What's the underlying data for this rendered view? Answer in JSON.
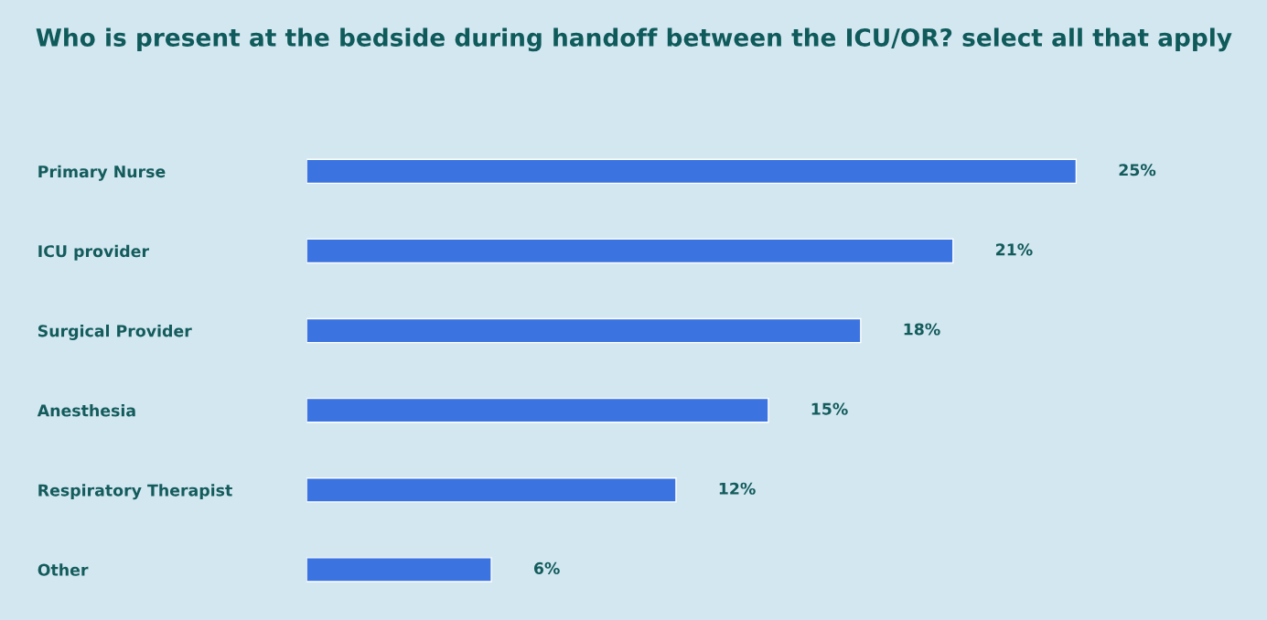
{
  "chart_data": {
    "type": "bar",
    "orientation": "horizontal",
    "title": "Who is present at the bedside during handoff between the ICU/OR? select all that apply",
    "categories": [
      "Primary Nurse",
      "ICU provider",
      "Surgical Provider",
      "Anesthesia",
      "Respiratory Therapist",
      "Other"
    ],
    "values": [
      25,
      21,
      18,
      15,
      12,
      6
    ],
    "value_labels": [
      "25%",
      "21%",
      "18%",
      "15%",
      "12%",
      "6%"
    ],
    "color": "#3b74e0",
    "xlim": [
      0,
      31.2
    ],
    "tick_labels": "y",
    "grid": false,
    "legend": false
  }
}
